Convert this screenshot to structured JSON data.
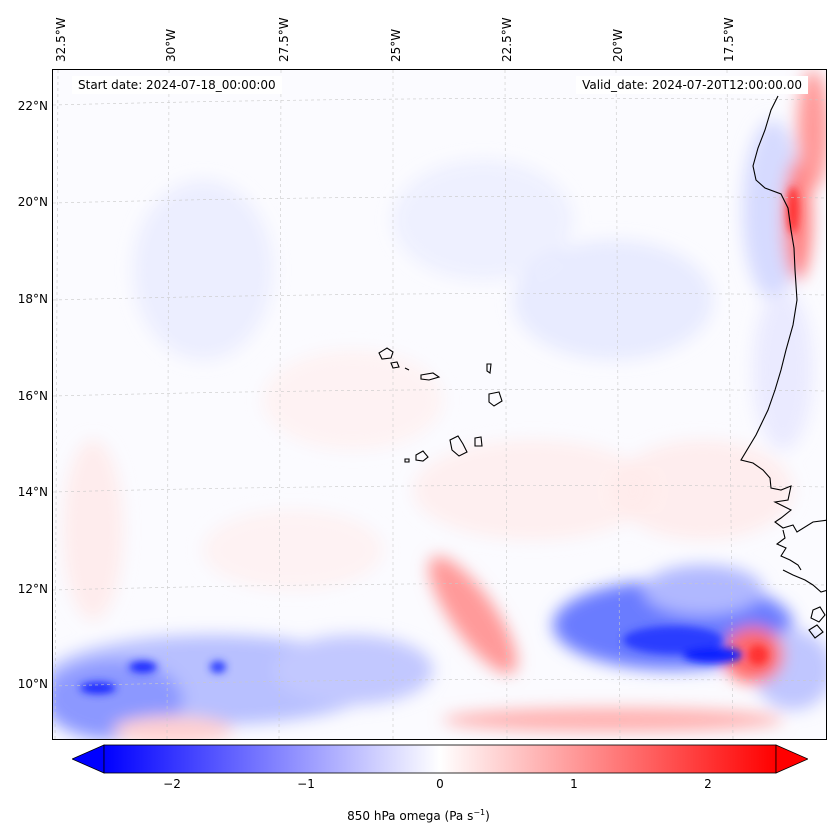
{
  "map": {
    "longitude_labels": [
      "32.5°W",
      "30°W",
      "27.5°W",
      "25°W",
      "22.5°W",
      "20°W",
      "17.5°W"
    ],
    "latitude_labels": [
      "22°N",
      "20°N",
      "18°N",
      "16°N",
      "14°N",
      "12°N",
      "10°N"
    ],
    "start_date_text": "Start date: 2024-07-18_00:00:00",
    "valid_date_text": "Valid_date: 2024-07-20T12:00:00.00",
    "field": "850 hPa omega",
    "features": [
      "Cape Verde islands",
      "West African coastline"
    ],
    "colormap": {
      "negative": "#0000ff",
      "zero": "#ffffff",
      "positive": "#ff0000"
    }
  },
  "colorbar": {
    "ticks": [
      "−2",
      "−1",
      "0",
      "1",
      "2"
    ],
    "tick_values": [
      -2,
      -1,
      0,
      1,
      2
    ],
    "range": [
      -2.5,
      2.5
    ],
    "label_main": "850 hPa omega (Pa s",
    "label_exp": "−1",
    "label_end": ")"
  }
}
